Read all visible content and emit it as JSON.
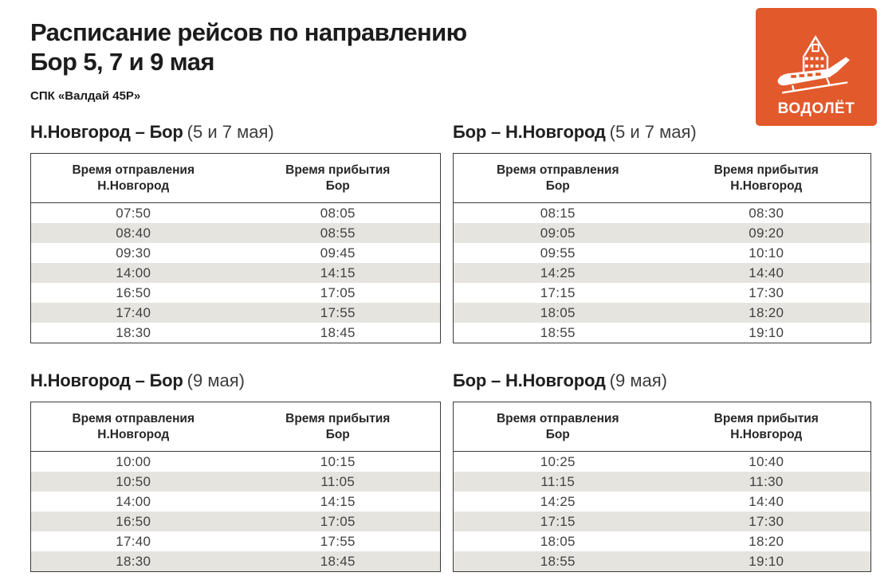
{
  "page": {
    "title_line1": "Расписание рейсов по направлению",
    "title_line2": "Бор 5, 7 и 9 мая",
    "subtitle": "СПК «Валдай 45Р»"
  },
  "logo": {
    "label": "ВОДОЛЁТ",
    "icon": "hydrofoil-and-kremlin-tower-icon",
    "bg_color": "#E2592C",
    "fg_color": "#FFFFFF"
  },
  "colors": {
    "title_text": "#1C1C1C",
    "table_text": "#414141",
    "row_stripe": "#E6E4DF",
    "table_border": "#3B3B3B"
  },
  "sections": [
    {
      "title_route": "Н.Новгород – Бор",
      "title_dates": "(5 и 7 мая)",
      "headers": {
        "departure": [
          "Время отправления",
          "Н.Новгород"
        ],
        "arrival": [
          "Время прибытия",
          "Бор"
        ]
      },
      "rows": [
        [
          "07:50",
          "08:05"
        ],
        [
          "08:40",
          "08:55"
        ],
        [
          "09:30",
          "09:45"
        ],
        [
          "14:00",
          "14:15"
        ],
        [
          "16:50",
          "17:05"
        ],
        [
          "17:40",
          "17:55"
        ],
        [
          "18:30",
          "18:45"
        ]
      ]
    },
    {
      "title_route": "Бор – Н.Новгород",
      "title_dates": "(5 и 7 мая)",
      "headers": {
        "departure": [
          "Время отправления",
          "Бор"
        ],
        "arrival": [
          "Время прибытия",
          "Н.Новгород"
        ]
      },
      "rows": [
        [
          "08:15",
          "08:30"
        ],
        [
          "09:05",
          "09:20"
        ],
        [
          "09:55",
          "10:10"
        ],
        [
          "14:25",
          "14:40"
        ],
        [
          "17:15",
          "17:30"
        ],
        [
          "18:05",
          "18:20"
        ],
        [
          "18:55",
          "19:10"
        ]
      ]
    },
    {
      "title_route": "Н.Новгород – Бор",
      "title_dates": "(9 мая)",
      "headers": {
        "departure": [
          "Время отправления",
          "Н.Новгород"
        ],
        "arrival": [
          "Время прибытия",
          "Бор"
        ]
      },
      "rows": [
        [
          "10:00",
          "10:15"
        ],
        [
          "10:50",
          "11:05"
        ],
        [
          "14:00",
          "14:15"
        ],
        [
          "16:50",
          "17:05"
        ],
        [
          "17:40",
          "17:55"
        ],
        [
          "18:30",
          "18:45"
        ]
      ]
    },
    {
      "title_route": "Бор – Н.Новгород",
      "title_dates": "(9 мая)",
      "headers": {
        "departure": [
          "Время отправления",
          "Бор"
        ],
        "arrival": [
          "Время прибытия",
          "Н.Новгород"
        ]
      },
      "rows": [
        [
          "10:25",
          "10:40"
        ],
        [
          "11:15",
          "11:30"
        ],
        [
          "14:25",
          "14:40"
        ],
        [
          "17:15",
          "17:30"
        ],
        [
          "18:05",
          "18:20"
        ],
        [
          "18:55",
          "19:10"
        ]
      ]
    }
  ]
}
